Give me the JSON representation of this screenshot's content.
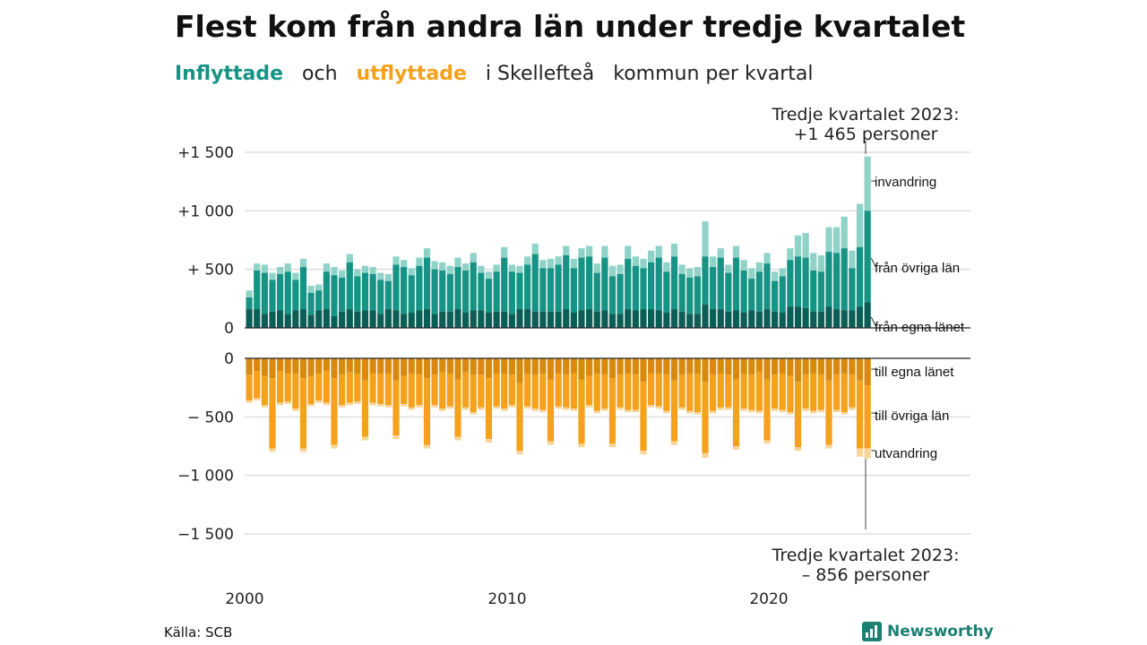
{
  "header": {
    "title": "Flest kom från andra län under tredje kvartalet",
    "subtitle_in": "Inflyttade",
    "subtitle_and": "och",
    "subtitle_out": "utflyttade",
    "subtitle_place": "i Skellefteå",
    "subtitle_rest1": "kommun",
    "subtitle_rest2": "per",
    "subtitle_rest3": "kvartal"
  },
  "footer": {
    "source": "Källa: SCB",
    "brand": "Newsworthy"
  },
  "colors": {
    "in_local": "#0b5e55",
    "in_other": "#159485",
    "in_immig": "#8fd3c8",
    "out_local": "#d98a0e",
    "out_other": "#f5a11c",
    "out_emig": "#f7d59a"
  },
  "chart_data": {
    "type": "bar",
    "stacked": true,
    "x_start": "2000 Q1",
    "x_end": "2023 Q3",
    "x_ticks": [
      "2000",
      "2010",
      "2020"
    ],
    "y_ticks": [
      "+1 500",
      "+1 000",
      "+ 500",
      "0",
      "0",
      "− 500",
      "−1 000",
      "−1 500"
    ],
    "upper_ylim": [
      0,
      1500
    ],
    "lower_ylim": [
      -1500,
      0
    ],
    "grid": true,
    "series_labels_in": [
      "invandring",
      "från övriga län",
      "från egna länet"
    ],
    "series_labels_out": [
      "till egna länet",
      "till övriga län",
      "utvandring"
    ],
    "callout_in": [
      "Tredje kvartalet 2023:",
      "+1 465 personer"
    ],
    "callout_out": [
      "Tredje kvartalet 2023:",
      "–  856 personer"
    ],
    "in_total": [
      320,
      550,
      540,
      470,
      520,
      550,
      470,
      590,
      360,
      370,
      550,
      520,
      490,
      630,
      500,
      530,
      520,
      470,
      460,
      610,
      580,
      510,
      600,
      680,
      570,
      560,
      530,
      600,
      550,
      640,
      530,
      480,
      540,
      690,
      540,
      530,
      610,
      720,
      580,
      590,
      610,
      700,
      590,
      680,
      700,
      550,
      700,
      530,
      540,
      700,
      610,
      590,
      660,
      700,
      560,
      720,
      540,
      510,
      520,
      910,
      610,
      680,
      540,
      700,
      580,
      510,
      560,
      640,
      480,
      510,
      680,
      790,
      810,
      640,
      620,
      860,
      860,
      950,
      660,
      1060,
      1465
    ],
    "in_local": [
      160,
      160,
      120,
      140,
      150,
      120,
      150,
      160,
      110,
      150,
      160,
      100,
      140,
      160,
      140,
      150,
      150,
      120,
      160,
      150,
      120,
      130,
      150,
      160,
      120,
      140,
      140,
      160,
      130,
      150,
      150,
      130,
      140,
      140,
      120,
      160,
      160,
      140,
      140,
      140,
      140,
      160,
      130,
      150,
      160,
      140,
      150,
      120,
      120,
      160,
      150,
      160,
      160,
      150,
      130,
      160,
      140,
      120,
      120,
      200,
      160,
      160,
      140,
      150,
      130,
      150,
      140,
      160,
      140,
      130,
      180,
      180,
      170,
      140,
      140,
      180,
      160,
      150,
      150,
      180,
      220
    ],
    "in_other": [
      260,
      490,
      470,
      410,
      460,
      480,
      410,
      520,
      300,
      320,
      480,
      450,
      430,
      560,
      440,
      470,
      460,
      410,
      400,
      540,
      520,
      450,
      530,
      600,
      500,
      490,
      460,
      520,
      490,
      560,
      470,
      420,
      480,
      600,
      480,
      470,
      540,
      630,
      510,
      510,
      540,
      620,
      510,
      600,
      610,
      470,
      600,
      440,
      460,
      590,
      530,
      510,
      560,
      600,
      480,
      610,
      460,
      430,
      440,
      610,
      520,
      600,
      470,
      600,
      490,
      420,
      480,
      550,
      400,
      440,
      580,
      610,
      600,
      490,
      480,
      650,
      640,
      680,
      510,
      690,
      1000
    ],
    "out_total": [
      380,
      360,
      420,
      800,
      400,
      390,
      450,
      800,
      410,
      380,
      400,
      770,
      420,
      400,
      390,
      700,
      400,
      410,
      420,
      690,
      410,
      440,
      420,
      770,
      420,
      450,
      430,
      700,
      440,
      480,
      440,
      720,
      430,
      450,
      420,
      820,
      430,
      450,
      460,
      740,
      430,
      440,
      450,
      760,
      420,
      470,
      450,
      760,
      440,
      460,
      460,
      820,
      420,
      430,
      470,
      740,
      440,
      470,
      480,
      850,
      470,
      440,
      440,
      780,
      450,
      460,
      470,
      730,
      450,
      460,
      480,
      790,
      450,
      470,
      460,
      770,
      460,
      480,
      440,
      840,
      856
    ],
    "out_local": [
      140,
      110,
      150,
      170,
      110,
      130,
      130,
      170,
      150,
      130,
      110,
      170,
      140,
      120,
      130,
      190,
      130,
      130,
      130,
      190,
      150,
      130,
      140,
      170,
      140,
      120,
      130,
      180,
      120,
      140,
      140,
      170,
      130,
      130,
      140,
      210,
      130,
      140,
      130,
      180,
      130,
      140,
      130,
      180,
      150,
      130,
      140,
      170,
      140,
      130,
      140,
      200,
      130,
      130,
      140,
      190,
      140,
      130,
      130,
      200,
      140,
      130,
      140,
      180,
      130,
      140,
      120,
      180,
      140,
      130,
      150,
      200,
      140,
      130,
      140,
      190,
      140,
      130,
      140,
      190,
      230
    ],
    "out_other": [
      360,
      340,
      400,
      770,
      380,
      370,
      430,
      770,
      390,
      360,
      380,
      740,
      400,
      380,
      370,
      670,
      380,
      390,
      400,
      660,
      390,
      420,
      400,
      740,
      400,
      430,
      410,
      670,
      420,
      460,
      420,
      690,
      410,
      430,
      400,
      790,
      410,
      430,
      440,
      710,
      410,
      420,
      430,
      730,
      400,
      450,
      430,
      730,
      420,
      440,
      440,
      790,
      400,
      410,
      450,
      710,
      420,
      450,
      460,
      810,
      450,
      420,
      420,
      750,
      430,
      440,
      450,
      700,
      430,
      440,
      460,
      760,
      430,
      450,
      440,
      740,
      440,
      460,
      420,
      770,
      770
    ]
  }
}
